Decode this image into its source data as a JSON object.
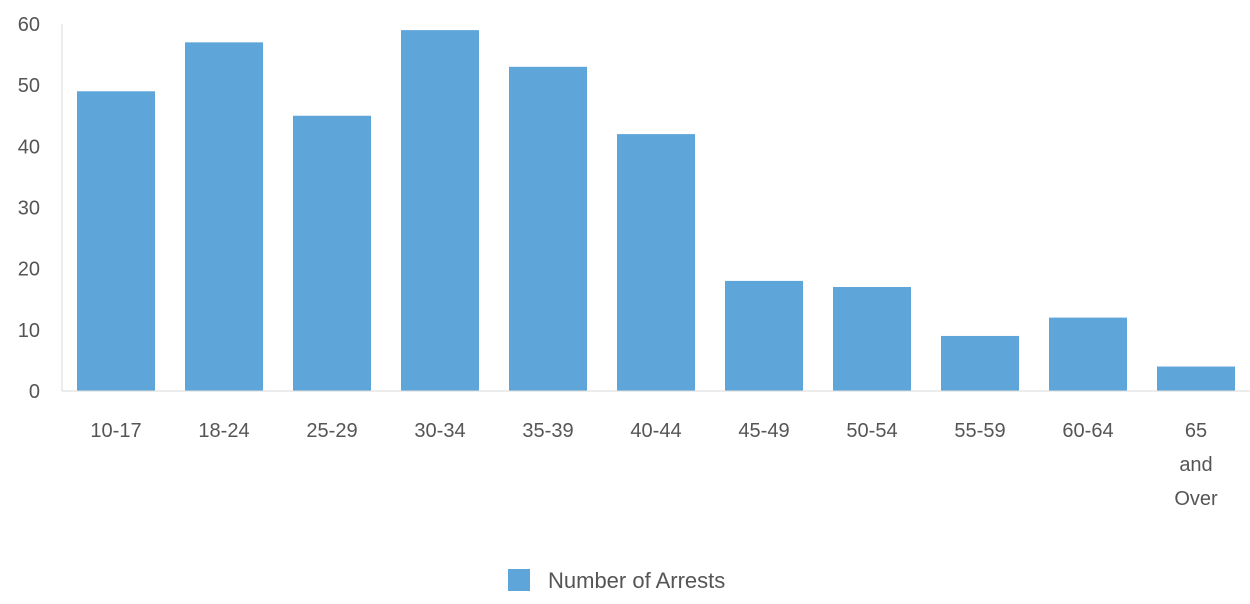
{
  "chart_data": {
    "type": "bar",
    "categories": [
      "10-17",
      "18-24",
      "25-29",
      "30-34",
      "35-39",
      "40-44",
      "45-49",
      "50-54",
      "55-59",
      "60-64",
      "65 and Over"
    ],
    "series": [
      {
        "name": "Number of Arrests",
        "values": [
          49,
          57,
          45,
          59,
          53,
          42,
          18,
          17,
          9,
          12,
          4
        ]
      }
    ],
    "ylim": [
      0,
      60
    ],
    "yticks": [
      0,
      10,
      20,
      30,
      40,
      50,
      60
    ],
    "grid": false,
    "legend": {
      "position": "bottom-center"
    },
    "colors": {
      "bar": "#5ea5da",
      "axis": "#d9d9d9",
      "text": "#555555"
    }
  }
}
